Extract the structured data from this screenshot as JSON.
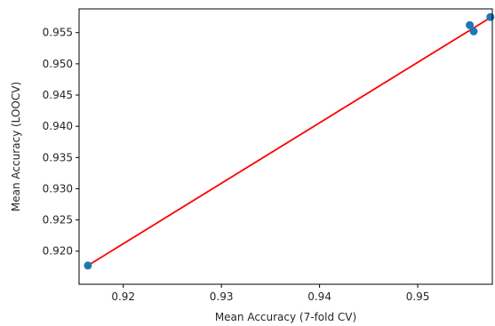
{
  "chart_data": {
    "type": "scatter",
    "xlabel": "Mean Accuracy (7-fold CV)",
    "ylabel": "Mean Accuracy (LOOCV)",
    "xlim": [
      0.9155,
      0.9576
    ],
    "ylim": [
      0.9147,
      0.9588
    ],
    "x_ticks": [
      0.92,
      0.93,
      0.94,
      0.95
    ],
    "x_tick_labels": [
      "0.92",
      "0.93",
      "0.94",
      "0.95"
    ],
    "y_ticks": [
      0.92,
      0.925,
      0.93,
      0.935,
      0.94,
      0.945,
      0.95,
      0.955
    ],
    "y_tick_labels": [
      "0.920",
      "0.925",
      "0.930",
      "0.935",
      "0.940",
      "0.945",
      "0.950",
      "0.955"
    ],
    "grid": false,
    "series": [
      {
        "type": "scatter",
        "color": "#1f77b4",
        "points": [
          {
            "x": 0.9164,
            "y": 0.9177
          },
          {
            "x": 0.9553,
            "y": 0.9562
          },
          {
            "x": 0.9557,
            "y": 0.9552
          },
          {
            "x": 0.9574,
            "y": 0.9575
          }
        ]
      },
      {
        "type": "line",
        "color": "#ff0000",
        "points": [
          {
            "x": 0.9164,
            "y": 0.9177
          },
          {
            "x": 0.9574,
            "y": 0.9574
          }
        ]
      }
    ]
  }
}
